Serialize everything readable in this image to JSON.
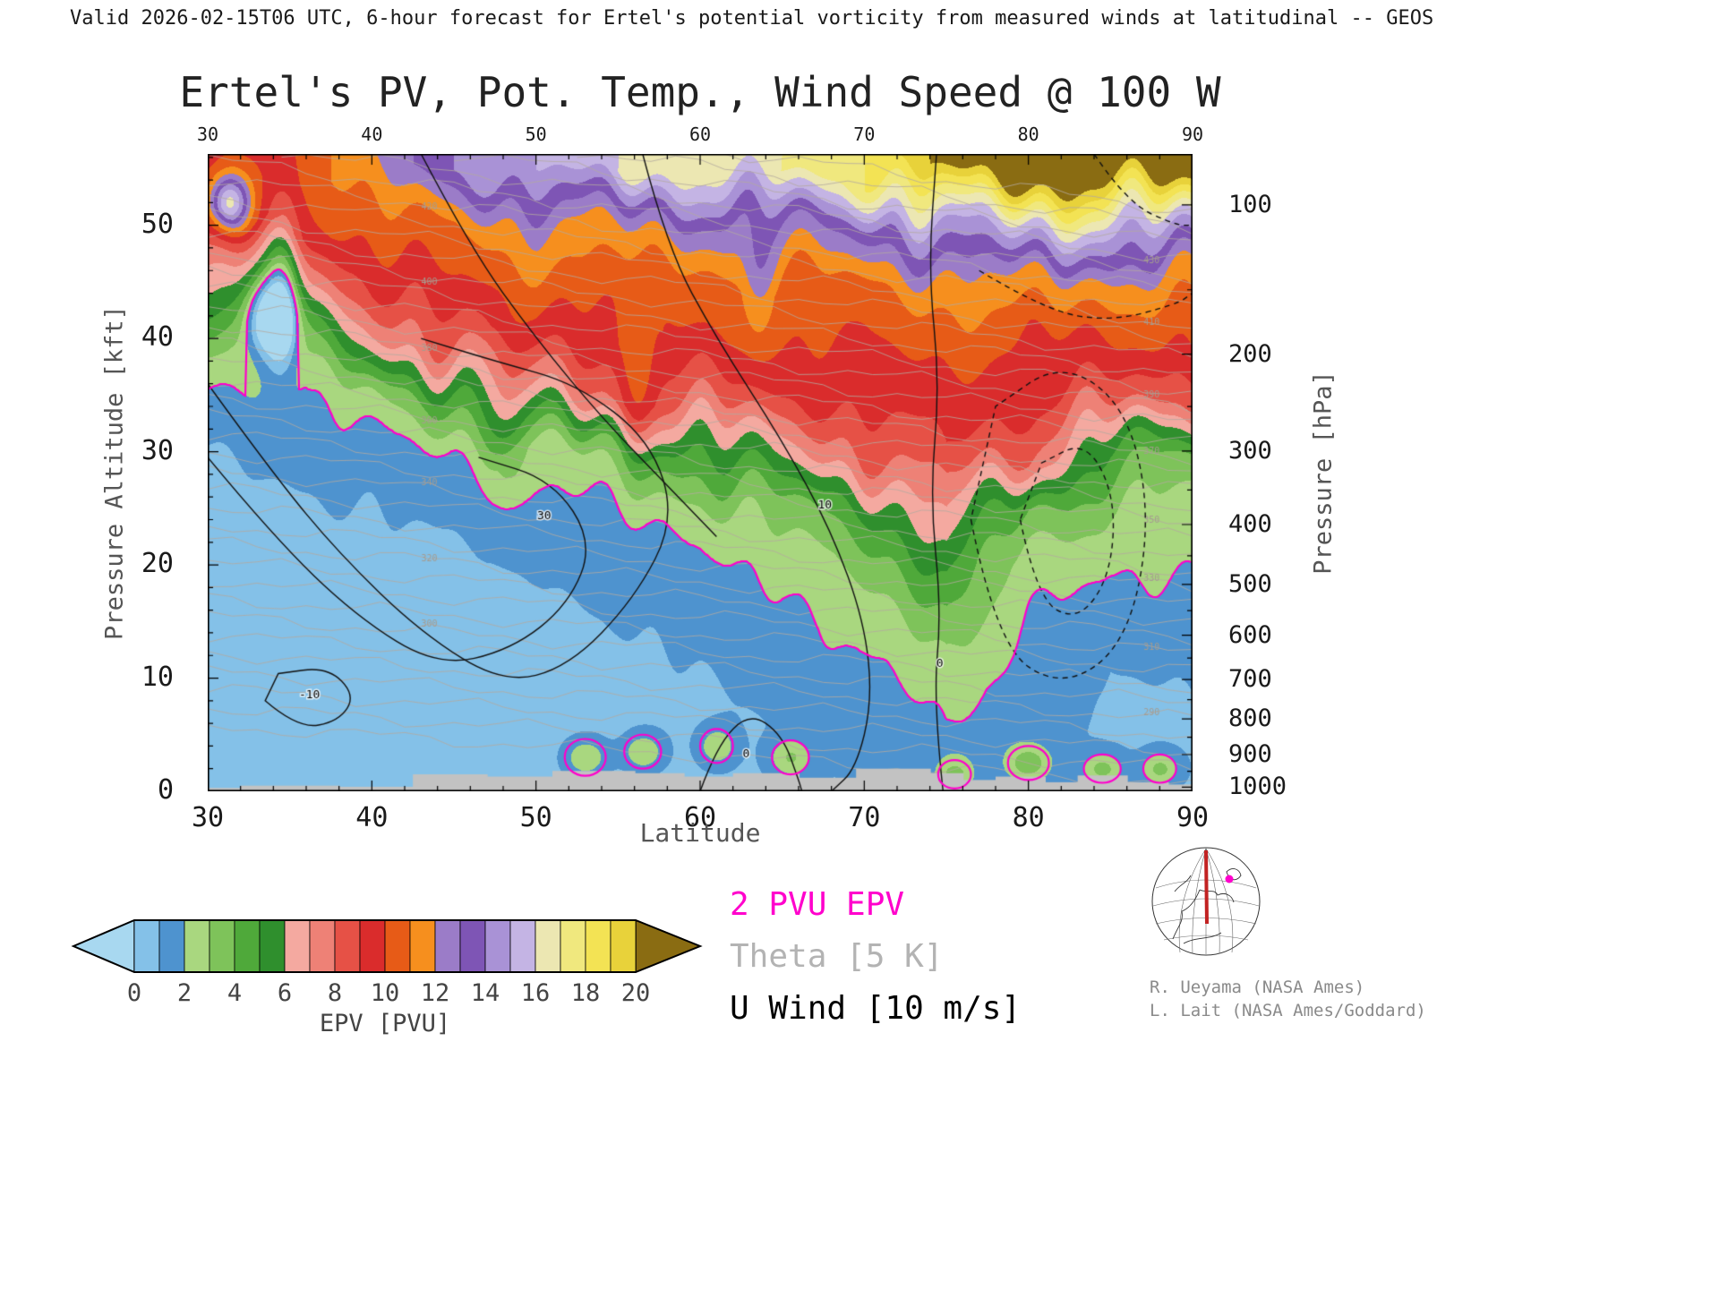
{
  "header": {
    "text": "Valid 2026-02-15T06 UTC, 6-hour forecast for Ertel's potential vorticity from measured winds at latitudinal -- GEOS"
  },
  "title": "Ertel's PV, Pot. Temp., Wind Speed @ 100 W",
  "axes": {
    "x": {
      "label": "Latitude",
      "ticks": [
        30,
        40,
        50,
        60,
        70,
        80,
        90
      ],
      "range": [
        30,
        90
      ]
    },
    "y_left": {
      "label": "Pressure Altitude [kft]",
      "ticks": [
        0,
        10,
        20,
        30,
        40,
        50
      ],
      "range": [
        0,
        56.3
      ]
    },
    "y_right": {
      "label": "Pressure [hPa]",
      "ticks": [
        100,
        200,
        300,
        400,
        500,
        600,
        700,
        800,
        900,
        1000
      ]
    }
  },
  "legend": [
    {
      "label": "2 PVU EPV",
      "color": "#ff00cc"
    },
    {
      "label": "Theta [5 K]",
      "color": "#b3b3b3"
    },
    {
      "label": "U Wind [10 m/s]",
      "color": "#000000"
    }
  ],
  "colorbar": {
    "label": "EPV [PVU]",
    "ticks": [
      0,
      2,
      4,
      6,
      8,
      10,
      12,
      14,
      16,
      18,
      20
    ],
    "under_color": "#a8d8f0",
    "over_color": "#8a6c12",
    "colors": [
      "#84c1e8",
      "#4e93cf",
      "#a9d77f",
      "#7ec35a",
      "#4fa93a",
      "#2f8f2d",
      "#f4a9a0",
      "#ee8176",
      "#e65146",
      "#da2c2c",
      "#e75b17",
      "#f68f1e",
      "#9b7cc8",
      "#7e55b5",
      "#a992d6",
      "#c4b4e4",
      "#ece7b2",
      "#f0e87e",
      "#f3e354",
      "#e8d23a"
    ]
  },
  "credits": [
    "R. Ueyama (NASA Ames)",
    "L. Lait (NASA Ames/Goddard)"
  ],
  "chart_data": {
    "type": "heatmap",
    "title": "Ertel's PV, Pot. Temp., Wind Speed @ 100 W",
    "xlabel": "Latitude",
    "ylabel": "Pressure Altitude [kft]",
    "ylabel_right": "Pressure [hPa]",
    "units": "PVU",
    "x": [
      30,
      35,
      40,
      45,
      50,
      55,
      60,
      65,
      70,
      75,
      80,
      85,
      90
    ],
    "y": [
      0,
      5,
      10,
      15,
      20,
      25,
      30,
      35,
      40,
      45,
      50,
      55
    ],
    "values": [
      [
        0.5,
        0.5,
        0.5,
        0.5,
        0.5,
        0.5,
        0.7,
        0.8,
        1.0,
        1.2,
        1.0,
        0.8,
        0.8
      ],
      [
        0.4,
        0.4,
        0.4,
        0.5,
        0.5,
        0.6,
        0.8,
        1.0,
        1.3,
        2.0,
        1.3,
        0.9,
        0.9
      ],
      [
        0.4,
        0.4,
        0.5,
        0.5,
        0.6,
        0.8,
        1.0,
        1.3,
        1.8,
        2.5,
        1.5,
        1.0,
        1.0
      ],
      [
        0.5,
        0.5,
        0.6,
        0.7,
        0.8,
        1.0,
        1.2,
        1.6,
        2.5,
        3.5,
        2.0,
        1.5,
        1.5
      ],
      [
        0.6,
        0.6,
        0.8,
        0.9,
        1.0,
        1.2,
        1.6,
        2.2,
        3.5,
        5.0,
        2.5,
        2.0,
        2.2
      ],
      [
        0.8,
        0.8,
        1.0,
        1.2,
        1.5,
        2.0,
        2.5,
        3.5,
        5.0,
        7.0,
        4.0,
        3.0,
        2.5
      ],
      [
        1.0,
        1.2,
        1.5,
        2.0,
        2.5,
        3.5,
        5.0,
        6.5,
        8.0,
        9.0,
        8.0,
        5.0,
        3.5
      ],
      [
        1.5,
        2.0,
        3.0,
        4.5,
        6.5,
        8.0,
        8.5,
        9.0,
        9.5,
        9.5,
        9.5,
        8.5,
        8.0
      ],
      [
        3.0,
        4.0,
        6.5,
        8.5,
        9.0,
        9.5,
        10.0,
        10.0,
        10.0,
        10.5,
        10.0,
        10.0,
        10.0
      ],
      [
        6.0,
        7.0,
        9.0,
        10.0,
        10.5,
        10.0,
        10.5,
        10.5,
        11.0,
        11.5,
        12.0,
        11.5,
        11.5
      ],
      [
        9.0,
        9.5,
        10.5,
        11.0,
        12.0,
        12.0,
        12.5,
        13.0,
        13.5,
        15.0,
        16.0,
        15.5,
        15.5
      ],
      [
        9.5,
        10.0,
        12.0,
        14.0,
        15.0,
        16.0,
        16.5,
        17.0,
        18.0,
        20.5,
        21.5,
        21.5,
        21.5
      ]
    ],
    "contours": {
      "epv": {
        "value": 2,
        "units": "PVU",
        "color": "#ff00cc",
        "label": "2 PVU EPV"
      },
      "theta": {
        "interval": 5,
        "units": "K",
        "color": "#b3a9a0",
        "label": "Theta [5 K]"
      },
      "u_wind": {
        "interval": 10,
        "units": "m/s",
        "color": "#000000",
        "label": "U Wind [10 m/s]",
        "labeled_values_visible": [
          -10,
          0,
          10,
          30
        ]
      }
    },
    "colorbar_range": [
      0,
      20
    ],
    "grid": false,
    "legend_position": "below-right"
  }
}
